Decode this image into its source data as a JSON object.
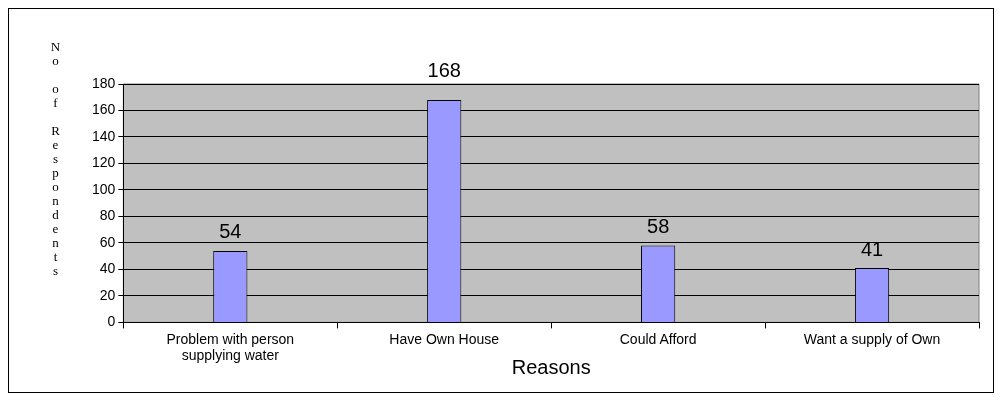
{
  "chart_data": {
    "type": "bar",
    "xlabel": "Reasons",
    "ylabel": "No of Respondents",
    "categories": [
      "Problem with person supplying water",
      "Have Own House",
      "Could Afford",
      "Want a supply of Own"
    ],
    "values": [
      54,
      168,
      58,
      41
    ],
    "color": "#9999ff",
    "ylim": [
      0,
      180
    ],
    "yticks": [
      0,
      20,
      40,
      60,
      80,
      100,
      120,
      140,
      160,
      180
    ],
    "grid": "y",
    "data_labels": true,
    "legend": false
  }
}
